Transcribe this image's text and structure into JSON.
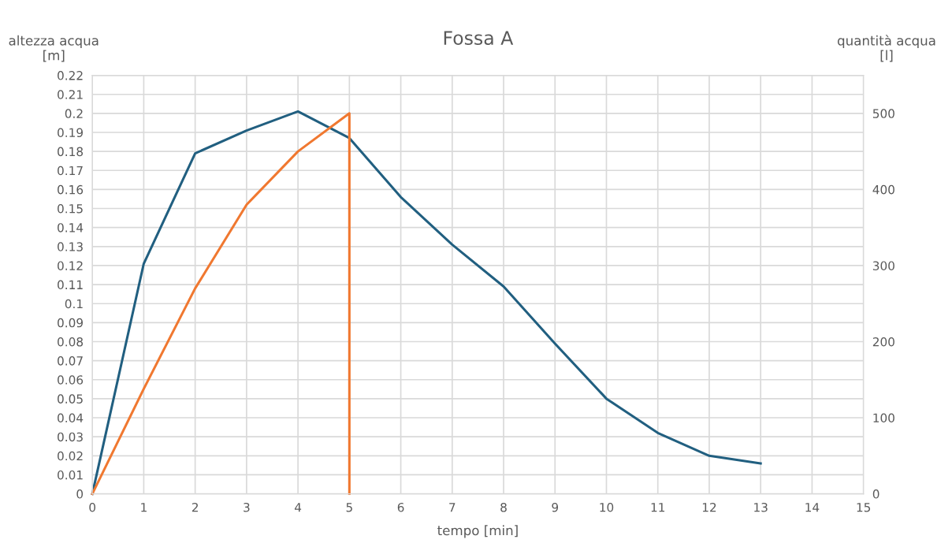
{
  "chart_data": {
    "type": "line",
    "title": "Fossa A",
    "xlabel": "tempo [min]",
    "ylabel": "altezza acqua\n[m]",
    "y2label": "quantità acqua\n[l]",
    "xlim": [
      0,
      15
    ],
    "xticks": [
      0,
      1,
      2,
      3,
      4,
      5,
      6,
      7,
      8,
      9,
      10,
      11,
      12,
      13,
      14,
      15
    ],
    "ylim": [
      0,
      0.22
    ],
    "yticks": [
      0,
      0.01,
      0.02,
      0.03,
      0.04,
      0.05,
      0.06,
      0.07,
      0.08,
      0.09,
      0.1,
      0.11,
      0.12,
      0.13,
      0.14,
      0.15,
      0.16,
      0.17,
      0.18,
      0.19,
      0.2,
      0.21,
      0.22
    ],
    "y2lim": [
      0,
      550
    ],
    "y2ticks": [
      0,
      100,
      200,
      300,
      400,
      500
    ],
    "grid": true,
    "marker": "none",
    "line_style": "solid",
    "series": [
      {
        "color": "#215f80",
        "x": [
          0,
          1,
          2,
          3,
          4,
          5,
          6,
          7,
          8,
          9,
          10,
          11,
          12,
          13
        ],
        "values": [
          0,
          0.121,
          0.179,
          0.191,
          0.201,
          0.187,
          0.156,
          0.131,
          0.109,
          0.079,
          0.05,
          0.032,
          0.02,
          0.016
        ]
      },
      {
        "color": "#f07830",
        "axis": "y2",
        "x": [
          0,
          1,
          2,
          3,
          4,
          5,
          5
        ],
        "values": [
          0,
          138,
          270,
          380,
          450,
          500,
          0
        ]
      }
    ]
  }
}
